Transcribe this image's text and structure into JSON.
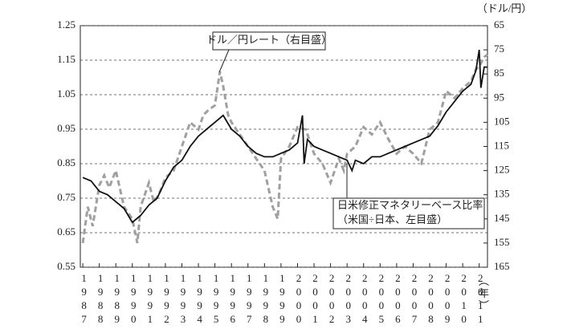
{
  "chart_data": {
    "type": "line",
    "y_label": "（ドル/円）",
    "x_label": "（年）",
    "annotations": [
      "ドル／円レート（右目盛）",
      "日米修正マネタリーベース比率",
      "（米国÷日本、左目盛）"
    ],
    "xlim": [
      1986.85,
      2011.5
    ],
    "xticks": [
      1987,
      1988,
      1989,
      1990,
      1991,
      1992,
      1993,
      1994,
      1995,
      1996,
      1997,
      1998,
      1999,
      2000,
      2001,
      2002,
      2003,
      2004,
      2005,
      2006,
      2007,
      2008,
      2009,
      2010,
      2011
    ],
    "ylim": [
      0.55,
      1.25
    ],
    "yticks": [
      0.55,
      0.65,
      0.75,
      0.85,
      0.95,
      1.05,
      1.15,
      1.25
    ],
    "y2lim": [
      65,
      165
    ],
    "y2_inverted": true,
    "y2ticks": [
      65,
      75,
      85,
      95,
      105,
      115,
      125,
      135,
      145,
      155,
      165
    ],
    "grid": true,
    "series": [
      {
        "name": "日米修正マネタリーベース比率",
        "color": "#111111",
        "style": "solid",
        "x": [
          1987.0,
          1987.5,
          1988.0,
          1988.5,
          1989.0,
          1989.5,
          1990.0,
          1990.5,
          1991.0,
          1991.5,
          1992.0,
          1992.5,
          1993.0,
          1993.5,
          1994.0,
          1994.5,
          1995.0,
          1995.5,
          1996.0,
          1996.5,
          1997.0,
          1997.5,
          1998.0,
          1998.5,
          1999.0,
          1999.5,
          2000.0,
          2000.3,
          2000.4,
          2000.6,
          2001.0,
          2001.5,
          2002.0,
          2002.5,
          2003.0,
          2003.3,
          2003.5,
          2004.0,
          2004.5,
          2005.0,
          2005.5,
          2006.0,
          2006.5,
          2007.0,
          2007.5,
          2008.0,
          2008.5,
          2009.0,
          2009.5,
          2010.0,
          2010.5,
          2010.8,
          2011.0,
          2011.1,
          2011.3,
          2011.5
        ],
        "values": [
          0.81,
          0.8,
          0.77,
          0.76,
          0.74,
          0.72,
          0.68,
          0.7,
          0.73,
          0.75,
          0.8,
          0.84,
          0.86,
          0.9,
          0.93,
          0.95,
          0.97,
          0.99,
          0.95,
          0.93,
          0.9,
          0.88,
          0.87,
          0.87,
          0.88,
          0.89,
          0.91,
          0.99,
          0.85,
          0.92,
          0.9,
          0.89,
          0.88,
          0.87,
          0.86,
          0.83,
          0.86,
          0.85,
          0.87,
          0.87,
          0.88,
          0.89,
          0.9,
          0.91,
          0.92,
          0.93,
          0.96,
          1.0,
          1.03,
          1.06,
          1.08,
          1.12,
          1.18,
          1.07,
          1.13,
          1.13
        ]
      },
      {
        "name": "ドル／円レート",
        "color": "#a0a0a0",
        "style": "dashed",
        "axis": "y2",
        "x": [
          1987.0,
          1987.3,
          1987.6,
          1988.0,
          1988.3,
          1988.6,
          1989.0,
          1989.5,
          1990.0,
          1990.3,
          1990.5,
          1991.0,
          1991.3,
          1991.6,
          1992.0,
          1992.5,
          1993.0,
          1993.5,
          1994.0,
          1994.3,
          1994.6,
          1995.0,
          1995.3,
          1995.5,
          1995.8,
          1996.0,
          1996.5,
          1997.0,
          1997.5,
          1998.0,
          1998.5,
          1998.8,
          1999.0,
          1999.5,
          2000.0,
          2000.5,
          2001.0,
          2001.5,
          2002.0,
          2002.5,
          2002.8,
          2003.0,
          2003.5,
          2004.0,
          2004.5,
          2005.0,
          2005.5,
          2006.0,
          2006.5,
          2007.0,
          2007.5,
          2008.0,
          2008.5,
          2009.0,
          2009.5,
          2010.0,
          2010.5,
          2010.8,
          2011.0,
          2011.3,
          2011.5
        ],
        "values": [
          155,
          140,
          148,
          131,
          127,
          132,
          125,
          140,
          145,
          155,
          140,
          130,
          138,
          135,
          128,
          125,
          115,
          105,
          108,
          102,
          100,
          98,
          84,
          90,
          102,
          105,
          110,
          115,
          120,
          125,
          140,
          145,
          120,
          115,
          107,
          108,
          118,
          122,
          130,
          120,
          125,
          118,
          115,
          107,
          110,
          105,
          112,
          118,
          115,
          118,
          122,
          108,
          105,
          92,
          95,
          91,
          88,
          83,
          82,
          78,
          77
        ]
      }
    ]
  }
}
